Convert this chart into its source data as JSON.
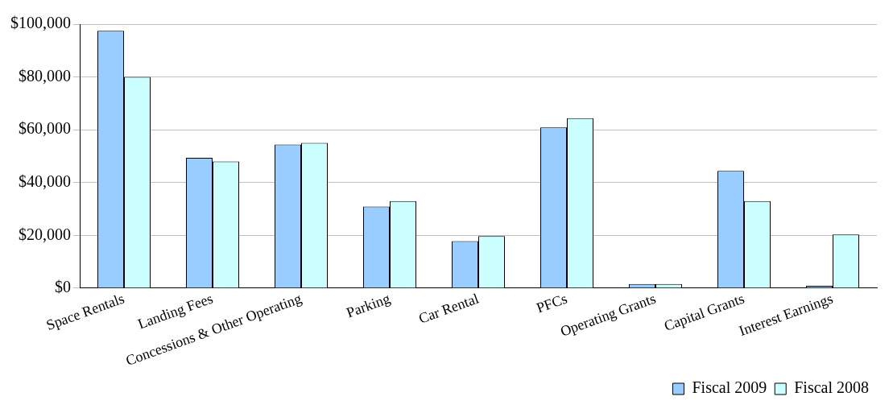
{
  "chart_data": {
    "type": "bar",
    "categories": [
      "Space Rentals",
      "Landing Fees",
      "Concessions & Other Operating",
      "Parking",
      "Car Rental",
      "PFCs",
      "Operating Grants",
      "Capital Grants",
      "Interest Earnings"
    ],
    "series": [
      {
        "name": "Fiscal 2009",
        "color": "#99ccff",
        "values": [
          97500,
          49400,
          54400,
          30900,
          17800,
          60900,
          1600,
          44400,
          900
        ]
      },
      {
        "name": "Fiscal 2008",
        "color": "#ccffff",
        "values": [
          80000,
          48000,
          55000,
          33000,
          19700,
          64400,
          1600,
          33000,
          20300
        ]
      }
    ],
    "ylim": [
      0,
      100000
    ],
    "yticks": [
      {
        "value": 0,
        "label": "$0"
      },
      {
        "value": 20000,
        "label": "$20,000"
      },
      {
        "value": 40000,
        "label": "$40,000"
      },
      {
        "value": 60000,
        "label": "$60,000"
      },
      {
        "value": 80000,
        "label": "$80,000"
      },
      {
        "value": 100000,
        "label": "$100,000"
      }
    ],
    "grid": "y",
    "legend": "bottom right"
  }
}
